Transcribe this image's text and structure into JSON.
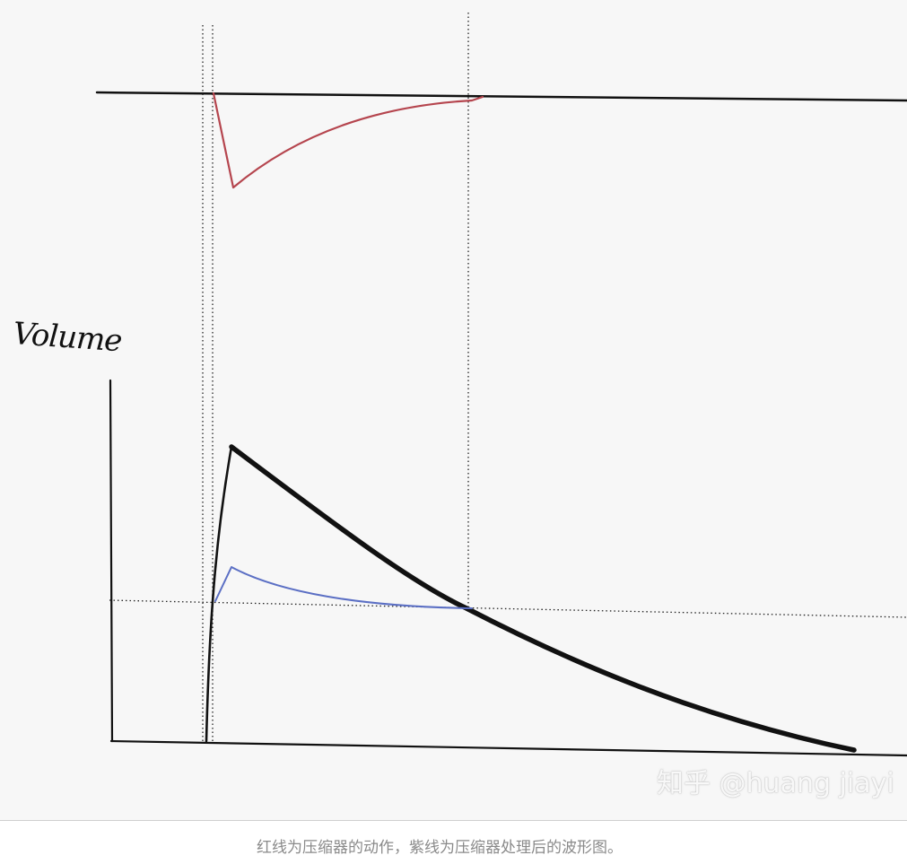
{
  "diagram": {
    "ylabel": "Volume",
    "watermark": "知乎 @huang jiayi",
    "colors": {
      "background": "#f7f7f7",
      "waveform": "#111111",
      "compressor_action": "#b5454e",
      "processed_waveform": "#5b6fc4",
      "guides": "#222222"
    }
  },
  "caption": "红线为压缩器的动作，紫线为压缩器处理后的波形图。"
}
